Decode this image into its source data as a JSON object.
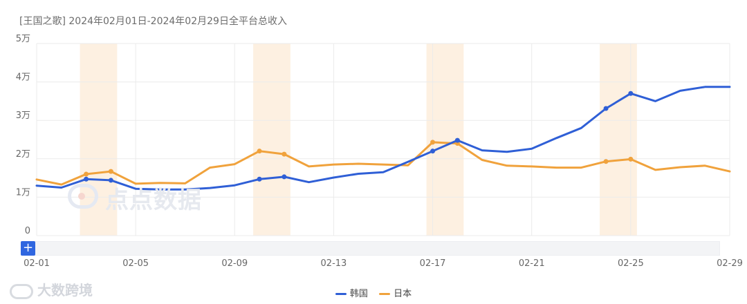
{
  "header": {
    "title": "[王国之歌]  2024年02月01日-2024年02月29日全平台总收入"
  },
  "watermark": {
    "main_text": "点点数据",
    "brand_text": "大数跨境"
  },
  "colors": {
    "korea": "#2f5fd6",
    "japan": "#f0a23c",
    "highlight": "#fdf0e1",
    "grid": "#ebebeb",
    "axis_text": "#666666"
  },
  "slider": {
    "handle_label": "+"
  },
  "chart_data": {
    "type": "line",
    "title": "[王国之歌]  2024年02月01日-2024年02月29日全平台总收入",
    "x": [
      "02-01",
      "02-02",
      "02-03",
      "02-04",
      "02-05",
      "02-06",
      "02-07",
      "02-08",
      "02-09",
      "02-10",
      "02-11",
      "02-12",
      "02-13",
      "02-14",
      "02-15",
      "02-16",
      "02-17",
      "02-18",
      "02-19",
      "02-20",
      "02-21",
      "02-22",
      "02-23",
      "02-24",
      "02-25",
      "02-26",
      "02-27",
      "02-28",
      "02-29"
    ],
    "x_tick_labels": [
      "02-01",
      "02-05",
      "02-09",
      "02-13",
      "02-17",
      "02-21",
      "02-25",
      "02-29"
    ],
    "y_tick_labels": [
      "0",
      "1万",
      "2万",
      "3万",
      "4万",
      "5万"
    ],
    "ylim": [
      0,
      50000
    ],
    "grid": true,
    "legend_position": "bottom-center",
    "highlight_dates": [
      "02-03",
      "02-10",
      "02-17",
      "02-24"
    ],
    "series": [
      {
        "name": "韩国",
        "values": [
          13000,
          12500,
          14700,
          14400,
          12200,
          12000,
          12000,
          12400,
          13100,
          14700,
          15300,
          13900,
          15100,
          16100,
          16500,
          19200,
          22000,
          24800,
          22200,
          21800,
          22600,
          25400,
          28000,
          33100,
          37000,
          35000,
          37700,
          38700,
          38700
        ],
        "marked": [
          "02-03",
          "02-04",
          "02-10",
          "02-11",
          "02-17",
          "02-18",
          "02-24",
          "02-25"
        ]
      },
      {
        "name": "日本",
        "values": [
          14600,
          13300,
          16000,
          16700,
          13500,
          13700,
          13600,
          17700,
          18600,
          22000,
          21200,
          18000,
          18500,
          18700,
          18500,
          18300,
          24300,
          24000,
          19700,
          18200,
          18000,
          17700,
          17700,
          19300,
          19900,
          17100,
          17800,
          18200,
          16700
        ],
        "marked": [
          "02-03",
          "02-04",
          "02-10",
          "02-11",
          "02-17",
          "02-18",
          "02-24",
          "02-25"
        ]
      }
    ]
  }
}
